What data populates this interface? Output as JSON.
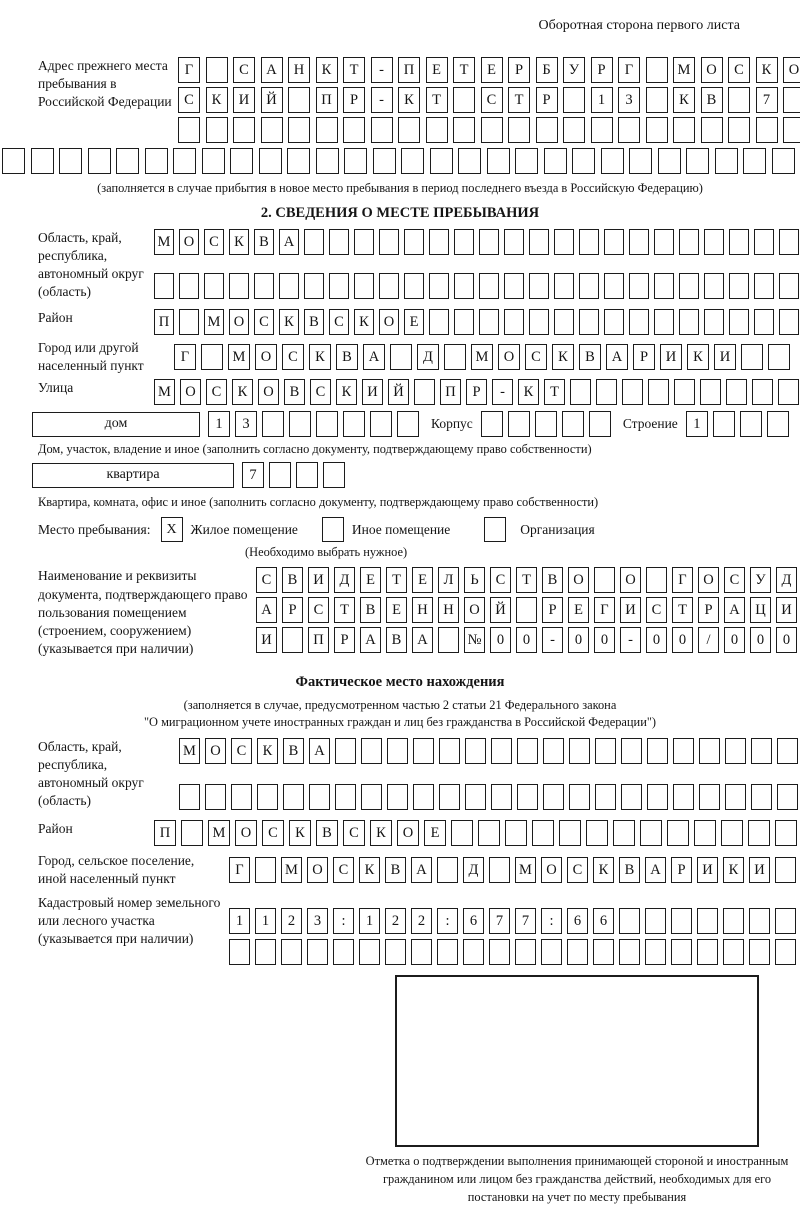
{
  "page": {
    "header_note": "Оборотная сторона первого листа"
  },
  "prev_address": {
    "label": "Адрес прежнего места пребывания в Российской Федерации",
    "rows": [
      {
        "text": "Г САНКТ-ПЕТЕРБУРГ МОСКОВ",
        "len": 24
      },
      {
        "text": "СКИЙ ПР-КТ СТР 13 КВ 7",
        "len": 24
      },
      {
        "text": "",
        "len": 24
      }
    ],
    "row_full": {
      "text": "",
      "len": 30
    },
    "caption": "(заполняется в случае прибытия в новое место пребывания в период последнего въезда в Российскую Федерацию)"
  },
  "section2": {
    "title": "2. СВЕДЕНИЯ О МЕСТЕ ПРЕБЫВАНИЯ",
    "region": {
      "label": "Область, край, республика, автономный округ (область)",
      "rows": [
        {
          "text": "МОСКВА",
          "len": 26
        },
        {
          "text": "",
          "len": 26
        }
      ]
    },
    "district": {
      "label": "Район",
      "row": {
        "text": "П МОСКВСКОЕ",
        "len": 26
      }
    },
    "city": {
      "label": "Город или другой населенный пункт",
      "row": {
        "text": "Г МОСКВА Д МОСКВАРИКИ",
        "len": 23
      }
    },
    "street": {
      "label": "Улица",
      "row": {
        "text": "МОСКОВСКИЙ ПР-КТ",
        "len": 25
      }
    },
    "house": {
      "type_label": "дом",
      "cells": {
        "text": "13",
        "len": 8
      },
      "korpus_label": "Корпус",
      "korpus_cells": {
        "text": "",
        "len": 5
      },
      "stroenie_label": "Строение",
      "stroenie_cells": {
        "text": "1",
        "len": 4
      },
      "caption": "Дом, участок, владение и иное (заполнить согласно документу, подтверждающему право собственности)"
    },
    "apartment": {
      "type_label": "квартира",
      "cells": {
        "text": "7",
        "len": 4
      },
      "caption": "Квартира, комната, офис и иное (заполнить согласно документу, подтверждающему право собственности)"
    },
    "place_type": {
      "label": "Место пребывания:",
      "options": [
        {
          "label": "Жилое помещение",
          "mark": "X"
        },
        {
          "label": "Иное помещение",
          "mark": ""
        },
        {
          "label": "Организация",
          "mark": ""
        }
      ],
      "hint": "(Необходимо выбрать нужное)"
    },
    "document": {
      "label": "Наименование и реквизиты документа, подтверждающего право пользования помещением (строением, сооружением) (указывается при наличии)",
      "rows": [
        {
          "text": "СВИДЕТЕЛЬСТВО О ГОСУД",
          "len": 21
        },
        {
          "text": "АРСТВЕННОЙ РЕГИСТРАЦИ",
          "len": 21
        },
        {
          "text": "И ПРАВА №00-00-00/000",
          "len": 21
        }
      ]
    }
  },
  "actual_location": {
    "title": "Фактическое место нахождения",
    "caption_line1": "(заполняется в случае, предусмотренном частью 2 статьи 21 Федерального закона",
    "caption_line2": "\"О миграционном учете иностранных граждан и лиц без гражданства в Российской Федерации\")",
    "region": {
      "label": "Область, край, республика, автономный округ (область)",
      "rows": [
        {
          "text": "МОСКВА",
          "len": 24
        },
        {
          "text": "",
          "len": 24
        }
      ]
    },
    "district": {
      "label": "Район",
      "row": {
        "text": "П МОСКВСКОЕ",
        "len": 24
      }
    },
    "city": {
      "label": "Город, сельское поселение, иной населенный пункт",
      "row": {
        "text": "Г МОСКВА Д МОСКВАРИКИ",
        "len": 22
      }
    },
    "cadastral": {
      "label": "Кадастровый номер земельного или лесного участка (указывается при наличии)",
      "rows": [
        {
          "text": "1123:122:677:66",
          "len": 22
        },
        {
          "text": "",
          "len": 22
        }
      ]
    },
    "stamp_caption": "Отметка о подтверждении выполнения принимающей стороной и иностранным гражданином или лицом без гражданства действий, необходимых для его постановки на учет по месту пребывания"
  }
}
